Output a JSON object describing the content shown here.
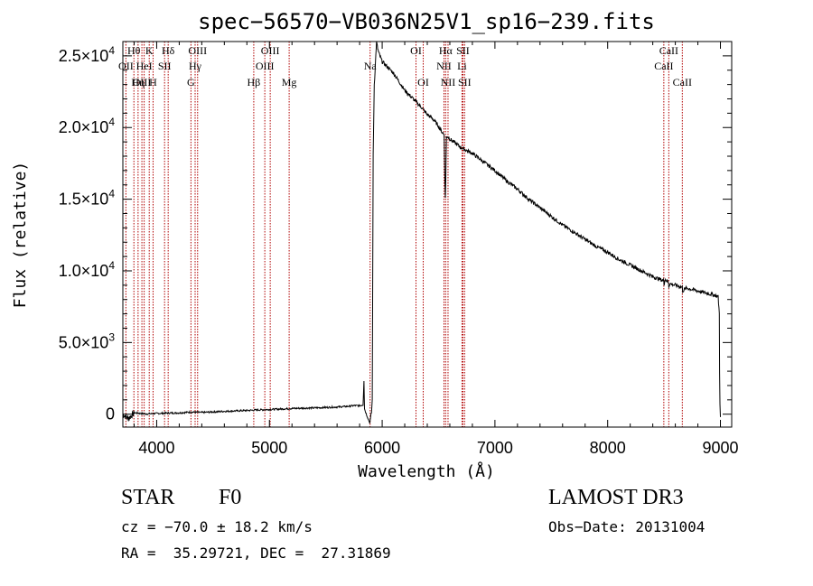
{
  "chart_data": {
    "type": "line",
    "title": "spec−56570−VB036N25V1_sp16−239.fits",
    "xlabel": "Wavelength (Å)",
    "ylabel": "Flux (relative)",
    "xlim": [
      3700,
      9100
    ],
    "ylim": [
      -900,
      26000
    ],
    "x_ticks": [
      {
        "value": 4000,
        "label": "4000"
      },
      {
        "value": 5000,
        "label": "5000"
      },
      {
        "value": 6000,
        "label": "6000"
      },
      {
        "value": 7000,
        "label": "7000"
      },
      {
        "value": 8000,
        "label": "8000"
      },
      {
        "value": 9000,
        "label": "9000"
      }
    ],
    "y_ticks": [
      {
        "value": 0,
        "mant": "0",
        "exp": ""
      },
      {
        "value": 5000,
        "mant": "5.0×10",
        "exp": "3"
      },
      {
        "value": 10000,
        "mant": "1.0×10",
        "exp": "4"
      },
      {
        "value": 15000,
        "mant": "1.5×10",
        "exp": "4"
      },
      {
        "value": 20000,
        "mant": "2.0×10",
        "exp": "4"
      },
      {
        "value": 25000,
        "mant": "2.5×10",
        "exp": "4"
      }
    ],
    "spectrum": {
      "name": "flux",
      "x": [
        3700,
        3750,
        3800,
        3900,
        4000,
        4100,
        4200,
        4300,
        4400,
        4500,
        4600,
        4700,
        4800,
        4900,
        5000,
        5100,
        5200,
        5300,
        5400,
        5500,
        5600,
        5700,
        5750,
        5800,
        5830,
        5838,
        5843,
        5850,
        5870,
        5890,
        5905,
        5912,
        5920,
        5930,
        5940,
        5950,
        5960,
        5970,
        6000,
        6050,
        6100,
        6150,
        6200,
        6250,
        6300,
        6350,
        6400,
        6450,
        6500,
        6530,
        6550,
        6556,
        6560,
        6564,
        6570,
        6580,
        6600,
        6650,
        6700,
        6750,
        6800,
        6900,
        7000,
        7100,
        7200,
        7300,
        7400,
        7500,
        7600,
        7700,
        7800,
        7900,
        8000,
        8100,
        8200,
        8300,
        8400,
        8450,
        8498,
        8500,
        8510,
        8540,
        8542,
        8550,
        8600,
        8662,
        8665,
        8700,
        8800,
        8850,
        8900,
        8950,
        8980,
        8990,
        8993,
        8996,
        9000
      ],
      "y": [
        0,
        -300,
        100,
        20,
        50,
        80,
        90,
        150,
        120,
        160,
        200,
        230,
        260,
        300,
        330,
        360,
        400,
        420,
        440,
        470,
        500,
        550,
        600,
        600,
        650,
        2350,
        400,
        200,
        -200,
        -600,
        100,
        1000,
        18000,
        23000,
        24500,
        26000,
        25500,
        25200,
        24600,
        24200,
        23800,
        23200,
        22600,
        22200,
        21800,
        21400,
        20900,
        20600,
        20100,
        19700,
        19500,
        16200,
        15100,
        16400,
        19300,
        19400,
        19200,
        18900,
        18600,
        18400,
        18200,
        17600,
        17000,
        16300,
        15700,
        15000,
        14400,
        13800,
        13200,
        12700,
        12200,
        11700,
        11300,
        10800,
        10400,
        10000,
        9600,
        9450,
        9300,
        9100,
        9400,
        9200,
        8900,
        9100,
        9000,
        8850,
        8600,
        8800,
        8600,
        8500,
        8400,
        8300,
        8200,
        7000,
        3000,
        800,
        -200
      ]
    },
    "spectral_lines": [
      {
        "name": "Hθ",
        "wavelength": 3798,
        "row": 1
      },
      {
        "name": "OII",
        "wavelength": 3727,
        "row": 2
      },
      {
        "name": "OIII",
        "wavelength": 3869,
        "row": 3
      },
      {
        "name": "Hη",
        "wavelength": 3835,
        "row": 3
      },
      {
        "name": "HeI",
        "wavelength": 3889,
        "row": 2
      },
      {
        "name": "K",
        "wavelength": 3934,
        "row": 1
      },
      {
        "name": "H",
        "wavelength": 3968,
        "row": 3
      },
      {
        "name": "SII",
        "wavelength": 4070,
        "row": 2
      },
      {
        "name": "Hδ",
        "wavelength": 4102,
        "row": 1
      },
      {
        "name": "OIII",
        "wavelength": 4363,
        "row": 1
      },
      {
        "name": "Hγ",
        "wavelength": 4341,
        "row": 2
      },
      {
        "name": "G",
        "wavelength": 4304,
        "row": 3
      },
      {
        "name": "Hβ",
        "wavelength": 4861,
        "row": 3
      },
      {
        "name": "OIII",
        "wavelength": 5007,
        "row": 1
      },
      {
        "name": "OIII",
        "wavelength": 4959,
        "row": 2
      },
      {
        "name": "Mg",
        "wavelength": 5175,
        "row": 3
      },
      {
        "name": "Na",
        "wavelength": 5893,
        "row": 2
      },
      {
        "name": "OI",
        "wavelength": 6300,
        "row": 1
      },
      {
        "name": "OI",
        "wavelength": 6364,
        "row": 3
      },
      {
        "name": "Hα",
        "wavelength": 6563,
        "row": 1
      },
      {
        "name": "NII",
        "wavelength": 6548,
        "row": 2
      },
      {
        "name": "NII",
        "wavelength": 6584,
        "row": 3
      },
      {
        "name": "SII",
        "wavelength": 6716,
        "row": 1
      },
      {
        "name": "Li",
        "wavelength": 6708,
        "row": 2
      },
      {
        "name": "SII",
        "wavelength": 6731,
        "row": 3
      },
      {
        "name": "CaII",
        "wavelength": 8542,
        "row": 1
      },
      {
        "name": "CaII",
        "wavelength": 8498,
        "row": 2
      },
      {
        "name": "CaII",
        "wavelength": 8662,
        "row": 3
      }
    ],
    "colors": {
      "line_marker": "#b00000",
      "spectrum": "#000000",
      "axis": "#000000"
    }
  },
  "info": {
    "object_class": "STAR",
    "subclass": "F0",
    "survey": "LAMOST DR3",
    "redshift": "cz = −70.0 ± 18.2 km/s",
    "obs_date": "Obs−Date: 20131004",
    "coords": "RA =  35.29721, DEC =  27.31869"
  }
}
